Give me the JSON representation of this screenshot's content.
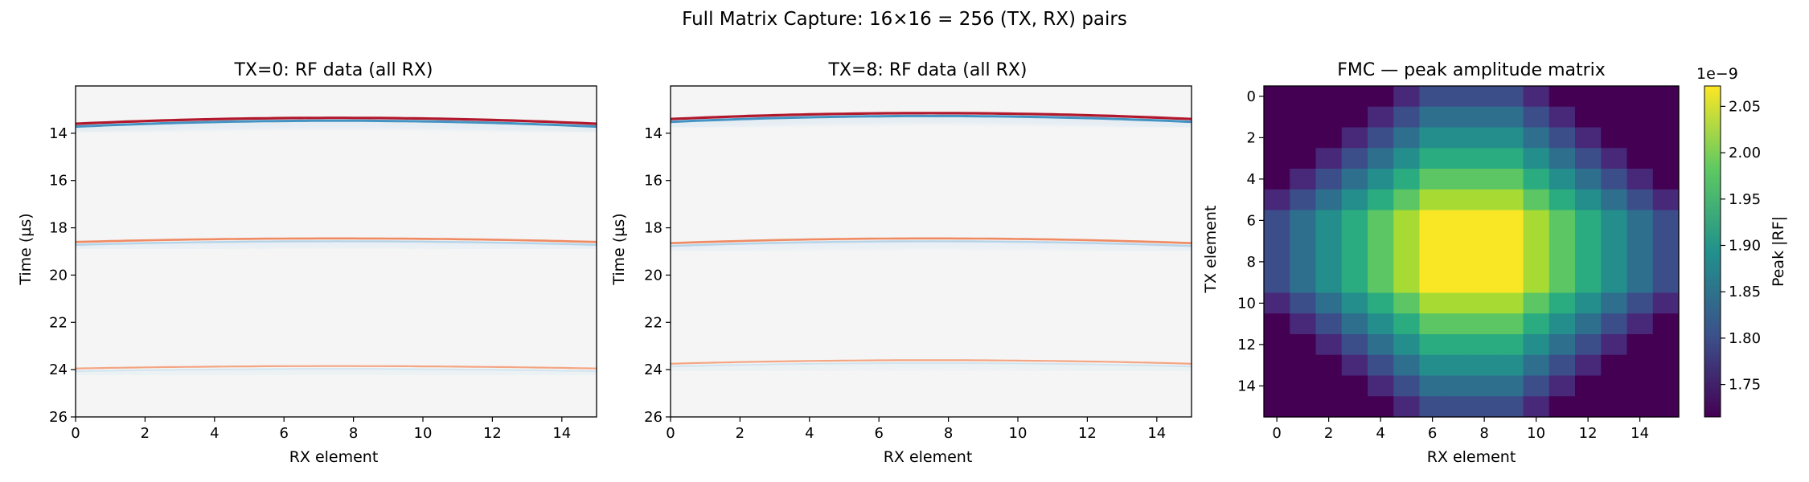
{
  "figure": {
    "suptitle": "Full Matrix Capture: 16×16 = 256 (TX, RX) pairs"
  },
  "chart_data": [
    {
      "type": "heatmap",
      "title": "TX=0: RF data (all RX)",
      "xlabel": "RX element",
      "ylabel": "Time (µs)",
      "xlim": [
        0,
        15
      ],
      "ylim": [
        26,
        12
      ],
      "xticks": [
        0,
        2,
        4,
        6,
        8,
        10,
        12,
        14
      ],
      "yticks": [
        14,
        16,
        18,
        20,
        22,
        24,
        26
      ],
      "colormap": "RdBu",
      "background": "#f5f5f5",
      "echoes": [
        {
          "center_rx": 7.5,
          "t_peak": 13.35,
          "t_edge": 13.6,
          "strength": "strong"
        },
        {
          "center_rx": 7.5,
          "t_peak": 18.45,
          "t_edge": 18.6,
          "strength": "medium"
        },
        {
          "center_rx": 7.5,
          "t_peak": 23.85,
          "t_edge": 23.95,
          "strength": "weak"
        }
      ]
    },
    {
      "type": "heatmap",
      "title": "TX=8: RF data (all RX)",
      "xlabel": "RX element",
      "ylabel": "Time (µs)",
      "xlim": [
        0,
        15
      ],
      "ylim": [
        26,
        12
      ],
      "xticks": [
        0,
        2,
        4,
        6,
        8,
        10,
        12,
        14
      ],
      "yticks": [
        14,
        16,
        18,
        20,
        22,
        24,
        26
      ],
      "colormap": "RdBu",
      "background": "#f5f5f5",
      "echoes": [
        {
          "center_rx": 7.5,
          "t_peak": 13.15,
          "t_edge": 13.4,
          "strength": "strong"
        },
        {
          "center_rx": 7.5,
          "t_peak": 18.45,
          "t_edge": 18.65,
          "strength": "medium"
        },
        {
          "center_rx": 7.5,
          "t_peak": 23.6,
          "t_edge": 23.75,
          "strength": "weak"
        }
      ]
    },
    {
      "type": "heatmap",
      "title": "FMC — peak amplitude matrix",
      "xlabel": "RX element",
      "ylabel": "TX element",
      "xticks": [
        0,
        2,
        4,
        6,
        8,
        10,
        12,
        14
      ],
      "yticks": [
        0,
        2,
        4,
        6,
        8,
        10,
        12,
        14
      ],
      "colormap": "viridis",
      "colorbar": {
        "label": "Peak |RF|",
        "offset_text": "1e−9",
        "vmin": 1.715,
        "vmax": 2.072,
        "ticks": [
          1.75,
          1.8,
          1.85,
          1.9,
          1.95,
          2.0,
          2.05
        ],
        "tick_labels": [
          "1.75",
          "1.80",
          "1.85",
          "1.90",
          "1.95",
          "2.00",
          "2.05"
        ]
      },
      "model": {
        "peak": 2.07,
        "falloff_per_step": 0.045,
        "center_low": 6,
        "center_high": 9,
        "unit_exponent": -9
      }
    }
  ]
}
